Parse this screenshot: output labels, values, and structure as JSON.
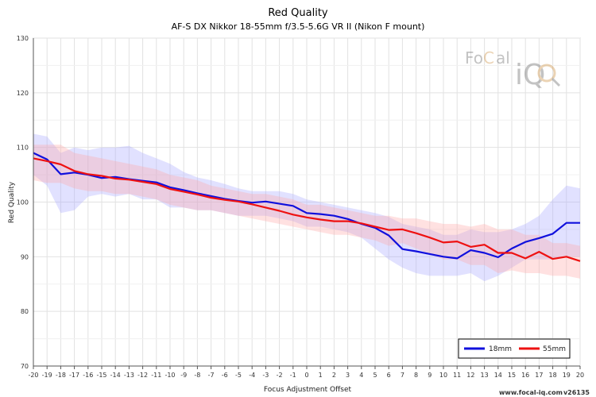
{
  "chart_data": {
    "type": "line",
    "title": "Red Quality",
    "subtitle": "AF-S DX Nikkor 18-55mm f/3.5-5.6G VR II (Nikon F mount)",
    "xlabel": "Focus Adjustment Offset",
    "ylabel": "Red Quality",
    "xlim": [
      -20,
      20
    ],
    "ylim": [
      70,
      130
    ],
    "yticks": [
      70,
      80,
      90,
      100,
      110,
      120,
      130
    ],
    "grid": true,
    "legend_position": "bottom-right",
    "x": [
      -20,
      -19,
      -18,
      -17,
      -16,
      -15,
      -14,
      -13,
      -12,
      -11,
      -10,
      -9,
      -8,
      -7,
      -6,
      -5,
      -4,
      -3,
      -2,
      -1,
      0,
      1,
      2,
      3,
      4,
      5,
      6,
      7,
      8,
      9,
      10,
      11,
      12,
      13,
      14,
      15,
      16,
      17,
      18,
      19,
      20
    ],
    "series": [
      {
        "name": "18mm",
        "color": "#1010dd",
        "band_color": "#aaaaff",
        "values": [
          109.0,
          107.8,
          105.1,
          105.4,
          105.0,
          104.4,
          104.6,
          104.2,
          103.9,
          103.6,
          102.7,
          102.2,
          101.6,
          101.1,
          100.6,
          100.2,
          99.9,
          100.1,
          99.7,
          99.3,
          98.0,
          97.8,
          97.5,
          96.9,
          96.0,
          95.3,
          93.9,
          91.4,
          91.0,
          90.5,
          90.0,
          89.7,
          91.2,
          90.7,
          89.9,
          91.5,
          92.7,
          93.4,
          94.2,
          96.2,
          96.2
        ],
        "upper": [
          112.5,
          112.0,
          109.0,
          110.0,
          109.5,
          110.0,
          110.0,
          110.3,
          109.0,
          108.0,
          107.0,
          105.5,
          104.5,
          104.0,
          103.3,
          102.5,
          102.0,
          102.0,
          102.0,
          101.5,
          100.5,
          100.0,
          99.5,
          99.0,
          98.5,
          98.0,
          97.3,
          96.0,
          95.5,
          95.0,
          94.0,
          94.0,
          95.0,
          94.5,
          94.5,
          95.0,
          96.0,
          97.5,
          100.5,
          103.0,
          102.5
        ],
        "lower": [
          105.0,
          103.0,
          98.0,
          98.5,
          101.0,
          101.5,
          101.0,
          101.5,
          100.5,
          100.5,
          99.0,
          99.0,
          98.5,
          98.5,
          98.0,
          97.5,
          97.5,
          97.5,
          97.0,
          96.5,
          95.5,
          95.5,
          95.0,
          94.5,
          93.5,
          91.5,
          89.5,
          88.0,
          87.0,
          86.5,
          86.5,
          86.5,
          87.0,
          85.5,
          86.5,
          88.0,
          89.5,
          89.5,
          89.5,
          90.0,
          90.0
        ]
      },
      {
        "name": "55mm",
        "color": "#ee1111",
        "band_color": "#ffaaaa",
        "values": [
          108.0,
          107.5,
          106.9,
          105.7,
          105.1,
          104.8,
          104.3,
          104.1,
          103.7,
          103.3,
          102.4,
          101.9,
          101.4,
          100.8,
          100.4,
          100.1,
          99.6,
          99.0,
          98.4,
          97.7,
          97.2,
          96.8,
          96.5,
          96.5,
          96.1,
          95.5,
          94.9,
          95.0,
          94.3,
          93.5,
          92.6,
          92.8,
          91.8,
          92.2,
          90.7,
          90.7,
          89.7,
          90.9,
          89.6,
          90.0,
          89.2
        ],
        "upper": [
          110.5,
          110.5,
          110.5,
          109.0,
          108.5,
          108.0,
          107.5,
          107.0,
          106.5,
          106.0,
          105.0,
          104.5,
          104.0,
          103.0,
          102.5,
          102.0,
          101.5,
          101.5,
          101.0,
          100.5,
          99.5,
          99.5,
          99.0,
          98.5,
          98.0,
          97.5,
          97.5,
          97.0,
          97.0,
          96.5,
          96.0,
          96.0,
          95.5,
          96.0,
          95.0,
          95.0,
          94.0,
          94.0,
          92.5,
          92.5,
          92.0
        ],
        "lower": [
          104.0,
          103.5,
          103.5,
          102.5,
          102.0,
          102.0,
          101.5,
          101.5,
          101.0,
          100.5,
          99.5,
          99.0,
          98.5,
          98.5,
          98.0,
          97.5,
          97.0,
          96.5,
          96.0,
          95.5,
          95.0,
          94.5,
          94.0,
          94.0,
          93.5,
          93.0,
          92.0,
          92.5,
          91.5,
          90.5,
          89.5,
          89.5,
          88.5,
          88.5,
          87.0,
          87.5,
          87.0,
          87.0,
          86.5,
          86.5,
          86.0
        ]
      }
    ]
  },
  "watermark": {
    "brand_text_1": "Fo",
    "brand_text_2": "C",
    "brand_text_3": "al",
    "brand_text_4": "iQ",
    "icon": "magnifier-icon"
  },
  "footer": {
    "url": "www.focal-iq.com",
    "version": "v26135"
  }
}
